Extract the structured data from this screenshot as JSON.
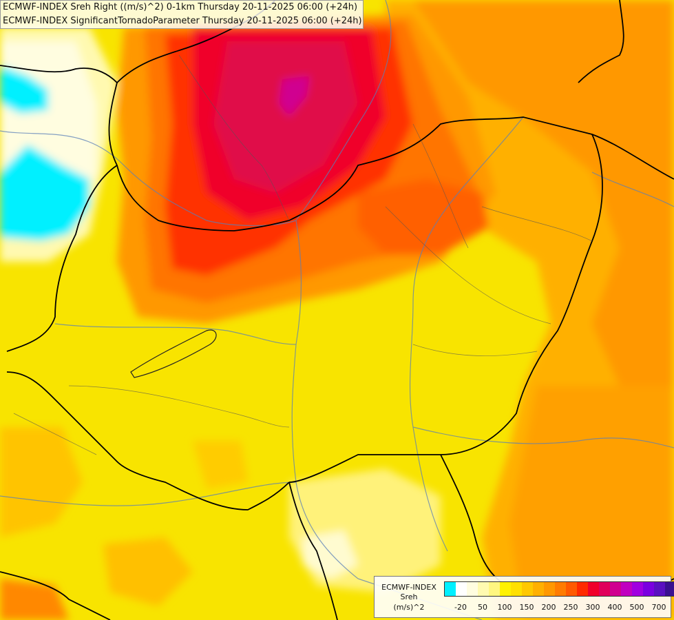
{
  "header": {
    "line1": "ECMWF-INDEX Sreh Right ((m/s)^2) 0-1km Thursday 20-11-2025 06:00 (+24h)",
    "line2": "ECMWF-INDEX SignificantTornadoParameter Thursday 20-11-2025 06:00 (+24h)"
  },
  "legend": {
    "name": "ECMWF-INDEX",
    "param": "Sreh",
    "unit": "(m/s)^2",
    "colors": [
      "#00f0ff",
      "#ffffff",
      "#fffde0",
      "#fffab0",
      "#fff680",
      "#fff200",
      "#ffe000",
      "#ffc800",
      "#ffb000",
      "#ff9800",
      "#ff7c00",
      "#ff5a00",
      "#ff2a00",
      "#f0002a",
      "#e0005a",
      "#d00090",
      "#c000c0",
      "#a000e0",
      "#7a00e0",
      "#5a10c0",
      "#3a1090",
      "#101070"
    ],
    "ticks": [
      {
        "label": "-20",
        "at": 1
      },
      {
        "label": "50",
        "at": 3
      },
      {
        "label": "100",
        "at": 5
      },
      {
        "label": "150",
        "at": 7
      },
      {
        "label": "200",
        "at": 9
      },
      {
        "label": "250",
        "at": 11
      },
      {
        "label": "300",
        "at": 13
      },
      {
        "label": "400",
        "at": 15
      },
      {
        "label": "500",
        "at": 17
      },
      {
        "label": "700",
        "at": 19
      }
    ]
  }
}
